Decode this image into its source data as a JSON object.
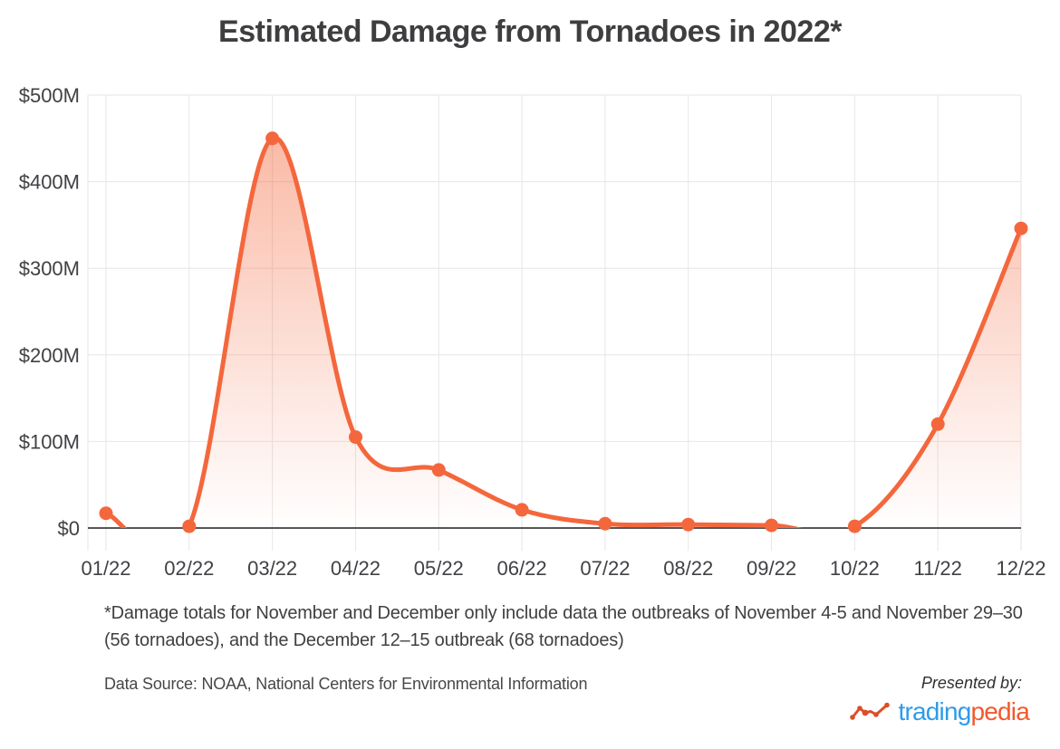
{
  "chart_data": {
    "type": "area",
    "title": "Estimated Damage from Tornadoes in 2022*",
    "categories": [
      "01/22",
      "02/22",
      "03/22",
      "04/22",
      "05/22",
      "06/22",
      "07/22",
      "08/22",
      "09/22",
      "10/22",
      "11/22",
      "12/22"
    ],
    "values": [
      17,
      2,
      450,
      105,
      67,
      21,
      5,
      4,
      3,
      2,
      120,
      346
    ],
    "series_name": "Estimated tornado damage",
    "unit": "USD millions",
    "xlabel": "",
    "ylabel": "",
    "ylim": [
      0,
      500
    ],
    "ytick_labels": [
      "$0",
      "$100M",
      "$200M",
      "$300M",
      "$400M",
      "$500M"
    ],
    "grid": true,
    "legend": "none",
    "line_style": "smooth-spline, clipped at zero, filled area with vertical fade, round markers at each month",
    "colors": {
      "line": "#F4673C",
      "marker": "#F4673C",
      "fill_top": "rgba(244,103,60,0.5)",
      "fill_bottom": "rgba(244,103,60,0)",
      "grid": "#E6E6E6",
      "axis": "#55565A",
      "text": "#414044"
    }
  },
  "footnote": {
    "line1": "*Damage totals for November and December only include data the outbreaks of November 4-5 and November 29–30",
    "line2": "(56 tornadoes), and the December 12–15 outbreak (68 tornadoes)"
  },
  "source": {
    "label": "Data Source: NOAA, National Centers for Environmental Information"
  },
  "branding": {
    "presented_by": "Presented by:",
    "logo": {
      "part1": "trading",
      "part2": "pedia",
      "part1_color": "#2E9BEA",
      "part2_color": "#F1592C",
      "icon_color": "#DC4E28"
    }
  }
}
